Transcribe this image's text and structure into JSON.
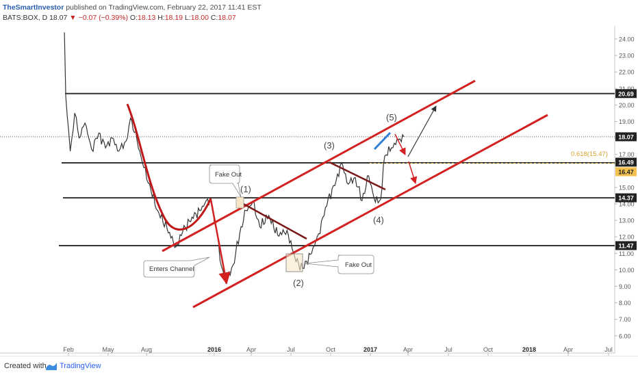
{
  "header": {
    "author": "TheSmartInvestor",
    "published": "published on TradingView.com, February 22, 2017 11:41 EST"
  },
  "quote": {
    "symbol": "BATS:BOX, D",
    "last": "18.07",
    "change": "−0.07 (−0.39%)",
    "open_label": "O:",
    "open": "18.13",
    "high_label": "H:",
    "high": "18.19",
    "low_label": "L:",
    "low": "18.00",
    "close_label": "C:",
    "close": "18.07"
  },
  "footer": {
    "created_with": "Created with",
    "brand": "TradingView"
  },
  "annotations": {
    "fake_out_1": "Fake Out",
    "fake_out_2": "Fake Out",
    "enters_channel": "Enters Channel",
    "wave_1": "(1)",
    "wave_2": "(2)",
    "wave_3": "(3)",
    "wave_4": "(4)",
    "wave_5": "(5)",
    "fib": "0.618(15.47)"
  },
  "chart_data": {
    "type": "line",
    "x_ticks": [
      "Feb",
      "May",
      "Aug",
      "2016",
      "Apr",
      "Jul",
      "Oct",
      "2017",
      "Apr",
      "Jul",
      "Oct",
      "2018",
      "Apr",
      "Jul"
    ],
    "y_ticks": [
      "24.00",
      "23.00",
      "22.00",
      "21.00",
      "20.00",
      "19.00",
      "18.00",
      "17.00",
      "16.00",
      "15.00",
      "14.00",
      "13.00",
      "12.00",
      "11.00",
      "10.00",
      "9.00",
      "8.00",
      "7.00",
      "6.00"
    ],
    "ylim": [
      5.4,
      24.6
    ],
    "series": [
      {
        "values": [
          [
            "2015-01-23",
            24.4
          ],
          [
            "2015-01-26",
            20.5
          ],
          [
            "2015-02-05",
            17.2
          ],
          [
            "2015-02-15",
            19.5
          ],
          [
            "2015-02-25",
            18.0
          ],
          [
            "2015-03-10",
            18.9
          ],
          [
            "2015-03-25",
            17.3
          ],
          [
            "2015-04-10",
            18.3
          ],
          [
            "2015-04-25",
            17.4
          ],
          [
            "2015-05-10",
            18.0
          ],
          [
            "2015-05-25",
            17.2
          ],
          [
            "2015-06-10",
            17.8
          ],
          [
            "2015-06-20",
            19.2
          ],
          [
            "2015-07-05",
            17.8
          ],
          [
            "2015-07-20",
            16.2
          ],
          [
            "2015-08-05",
            14.8
          ],
          [
            "2015-08-20",
            13.6
          ],
          [
            "2015-09-10",
            12.5
          ],
          [
            "2015-09-30",
            11.4
          ],
          [
            "2015-10-15",
            12.3
          ],
          [
            "2015-11-05",
            13.2
          ],
          [
            "2015-11-25",
            13.6
          ],
          [
            "2015-12-10",
            14.3
          ],
          [
            "2015-12-18",
            14.1
          ],
          [
            "2015-12-28",
            12.8
          ],
          [
            "2016-01-10",
            10.2
          ],
          [
            "2016-01-20",
            9.2
          ],
          [
            "2016-02-05",
            10.3
          ],
          [
            "2016-02-20",
            12.2
          ],
          [
            "2016-03-05",
            13.6
          ],
          [
            "2016-03-20",
            14.1
          ],
          [
            "2016-04-05",
            12.6
          ],
          [
            "2016-04-25",
            13.3
          ],
          [
            "2016-05-15",
            12.1
          ],
          [
            "2016-06-05",
            12.4
          ],
          [
            "2016-06-25",
            10.5
          ],
          [
            "2016-07-10",
            10.1
          ],
          [
            "2016-07-30",
            11.0
          ],
          [
            "2016-08-15",
            12.2
          ],
          [
            "2016-09-05",
            14.3
          ],
          [
            "2016-09-20",
            15.1
          ],
          [
            "2016-10-05",
            16.5
          ],
          [
            "2016-10-20",
            15.2
          ],
          [
            "2016-11-05",
            15.6
          ],
          [
            "2016-11-20",
            14.2
          ],
          [
            "2016-12-05",
            15.7
          ],
          [
            "2016-12-20",
            14.1
          ],
          [
            "2017-01-01",
            14.3
          ],
          [
            "2017-01-10",
            16.9
          ],
          [
            "2017-01-25",
            17.4
          ],
          [
            "2017-02-10",
            17.9
          ],
          [
            "2017-02-22",
            18.07
          ]
        ]
      }
    ],
    "last_price": 18.07,
    "horizontal_levels": [
      20.69,
      16.49,
      14.37,
      11.47
    ],
    "price_labels": [
      "20.69",
      "18.07",
      "16.49",
      "16.47",
      "14.37",
      "11.47"
    ],
    "fib_level": 15.47,
    "grid": false,
    "legend": "none"
  }
}
